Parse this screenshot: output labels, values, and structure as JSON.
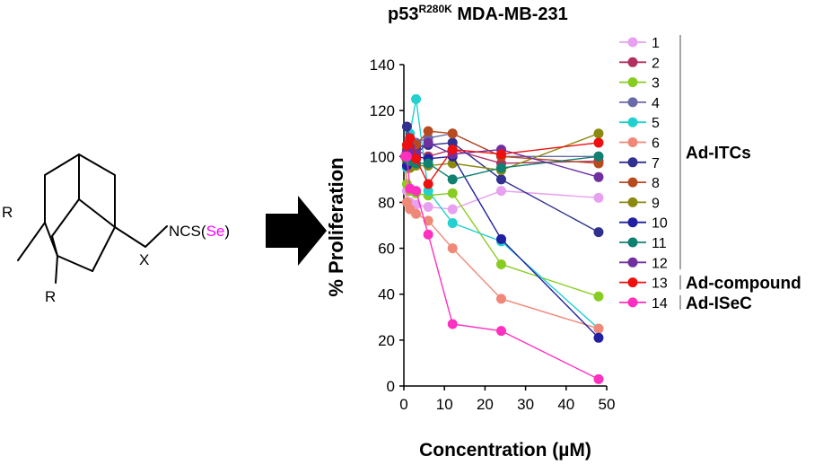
{
  "structure": {
    "substituent_r": "R",
    "linker_x": "X",
    "ncs_prefix": "NCS(",
    "selenium": "Se",
    "ncs_suffix": ")",
    "selenium_color": "#ff00ff"
  },
  "chart_data": {
    "type": "line",
    "title_main": "p53",
    "title_superscript": "R280K",
    "title_cell_line": " MDA-MB-231",
    "xlabel": "Concentration (µM)",
    "ylabel": "% Proliferation",
    "xlim": [
      0,
      50
    ],
    "ylim": [
      0,
      140
    ],
    "x_ticks": [
      "0",
      "10",
      "20",
      "30",
      "40",
      "50"
    ],
    "y_ticks": [
      "0",
      "20",
      "40",
      "60",
      "80",
      "100",
      "120",
      "140"
    ],
    "x": [
      0.375,
      0.75,
      1.5,
      3,
      6,
      12,
      24,
      48
    ],
    "grid": false,
    "legend_position": "right",
    "series": [
      {
        "name": "1",
        "color": "#e8a0f0",
        "values": [
          100,
          85,
          80,
          79,
          78,
          77,
          85,
          82
        ]
      },
      {
        "name": "2",
        "color": "#b03060",
        "values": [
          100,
          102,
          104,
          103,
          100,
          103,
          97,
          98
        ]
      },
      {
        "name": "3",
        "color": "#88cc22",
        "values": [
          100,
          88,
          85,
          84,
          83,
          84,
          53,
          39
        ]
      },
      {
        "name": "4",
        "color": "#6a6aa8",
        "values": [
          100,
          103,
          107,
          106,
          108,
          110,
          100,
          100
        ]
      },
      {
        "name": "5",
        "color": "#22d0d0",
        "values": [
          100,
          95,
          110,
          125,
          85,
          71,
          63,
          25
        ]
      },
      {
        "name": "6",
        "color": "#f08878",
        "values": [
          100,
          80,
          77,
          75,
          72,
          60,
          38,
          25
        ]
      },
      {
        "name": "7",
        "color": "#303090",
        "values": [
          100,
          113,
          108,
          104,
          105,
          106,
          90,
          67
        ]
      },
      {
        "name": "8",
        "color": "#b84a20",
        "values": [
          100,
          103,
          104,
          105,
          111,
          110,
          100,
          97
        ]
      },
      {
        "name": "9",
        "color": "#8a8a10",
        "values": [
          100,
          98,
          95,
          96,
          96,
          97,
          94,
          110
        ]
      },
      {
        "name": "10",
        "color": "#2020a0",
        "values": [
          100,
          96,
          102,
          100,
          99,
          100,
          64,
          21
        ]
      },
      {
        "name": "11",
        "color": "#108070",
        "values": [
          100,
          99,
          98,
          97,
          97,
          90,
          95,
          100
        ]
      },
      {
        "name": "12",
        "color": "#7030a0",
        "values": [
          100,
          102,
          104,
          101,
          106,
          101,
          103,
          91
        ]
      },
      {
        "name": "13",
        "color": "#ee1010",
        "values": [
          100,
          105,
          108,
          99,
          88,
          103,
          101,
          106
        ]
      },
      {
        "name": "14",
        "color": "#ff30c0",
        "values": [
          100,
          100,
          86,
          85,
          66,
          27,
          24,
          3
        ]
      }
    ],
    "groups": [
      {
        "label": "Ad-ITCs",
        "members": [
          "1",
          "2",
          "3",
          "4",
          "5",
          "6",
          "7",
          "8",
          "9",
          "10",
          "11",
          "12"
        ]
      },
      {
        "label": "Ad-compound",
        "members": [
          "13"
        ]
      },
      {
        "label": "Ad-ISeC",
        "members": [
          "14"
        ]
      }
    ]
  }
}
